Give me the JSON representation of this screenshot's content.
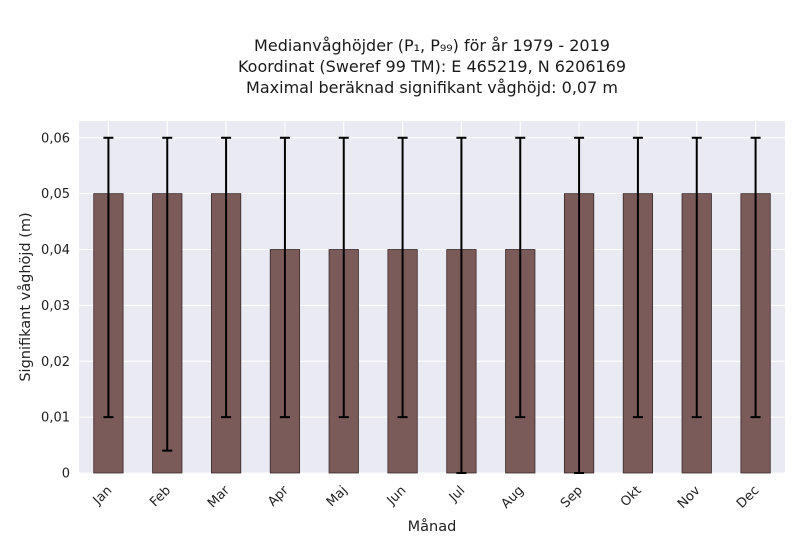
{
  "chart_data": {
    "type": "bar",
    "title": "Medianvåghöjder (P₁, P₉₉) för år 1979 - 2019",
    "subtitle_lines": [
      "Koordinat (Sweref 99 TM): E 465219, N 6206169",
      "Maximal beräknad signifikant våghöjd: 0,07 m"
    ],
    "xlabel": "Månad",
    "ylabel": "Signifikant våghöjd (m)",
    "categories": [
      "Jan",
      "Feb",
      "Mar",
      "Apr",
      "Maj",
      "Jun",
      "Jul",
      "Aug",
      "Sep",
      "Okt",
      "Nov",
      "Dec"
    ],
    "values": [
      0.05,
      0.05,
      0.05,
      0.04,
      0.04,
      0.04,
      0.04,
      0.04,
      0.05,
      0.05,
      0.05,
      0.05
    ],
    "error_low": [
      0.01,
      0.004,
      0.01,
      0.01,
      0.01,
      0.01,
      0.0,
      0.01,
      0.0,
      0.01,
      0.01,
      0.01
    ],
    "error_high": [
      0.06,
      0.06,
      0.06,
      0.06,
      0.06,
      0.06,
      0.06,
      0.06,
      0.06,
      0.06,
      0.06,
      0.06
    ],
    "ylim": [
      0,
      0.063
    ],
    "yticks": [
      0,
      0.01,
      0.02,
      0.03,
      0.04,
      0.05,
      0.06
    ],
    "ytick_labels": [
      "0",
      "0,01",
      "0,02",
      "0,03",
      "0,04",
      "0,05",
      "0,06"
    ],
    "grid": true,
    "colors": {
      "bar": "#7b5a5a",
      "bar_edge": "#3a2a2a",
      "error_bar": "#000000",
      "plot_background": "#eaeaf2",
      "grid": "#ffffff"
    }
  }
}
